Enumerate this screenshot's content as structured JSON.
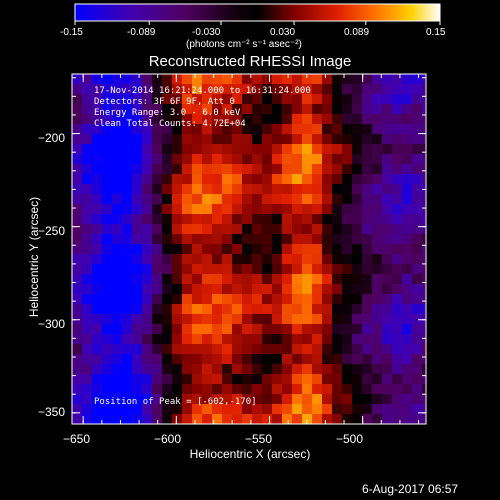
{
  "colorbar": {
    "tick_labels": [
      "-0.15",
      "-0.089",
      "-0.030",
      "0.030",
      "0.089",
      "0.15"
    ],
    "unit_label": "(photons cm⁻² s⁻¹ asec⁻²)",
    "range": [
      -0.15,
      0.15
    ]
  },
  "image_info": {
    "line1": "17-Nov-2014 16:21:24.000 to 16:31:24.000",
    "line2": "Detectors: 3F 6F 9F, Att 0",
    "line3": "Energy Range: 3.0 - 6.0 keV",
    "line4": "Clean     Total Counts: 4.72E+04",
    "peak": "Position of Peak = [-602,-170]"
  },
  "footer": {
    "timestamp": "6-Aug-2017 06:57"
  },
  "chart_data": {
    "type": "heatmap",
    "title": "Reconstructed RHESSI Image",
    "xlabel": "Heliocentric X (arcsec)",
    "ylabel": "Heliocentric Y (arcsec)",
    "xlim": [
      -656,
      -466
    ],
    "ylim": [
      -356,
      -168
    ],
    "x_ticks": [
      -650,
      -600,
      -550,
      -500
    ],
    "y_ticks": [
      -350,
      -300,
      -250,
      -200
    ],
    "x_tick_labels": [
      "−650",
      "−600",
      "−550",
      "−500"
    ],
    "y_tick_labels": [
      "−350",
      "−300",
      "−250",
      "−200"
    ],
    "value_range": [
      -0.15,
      0.15
    ],
    "colormap": "red-temperature (blue/purple negative, black zero, red-yellow-white positive)",
    "peak_position": [
      -602,
      -170
    ]
  }
}
